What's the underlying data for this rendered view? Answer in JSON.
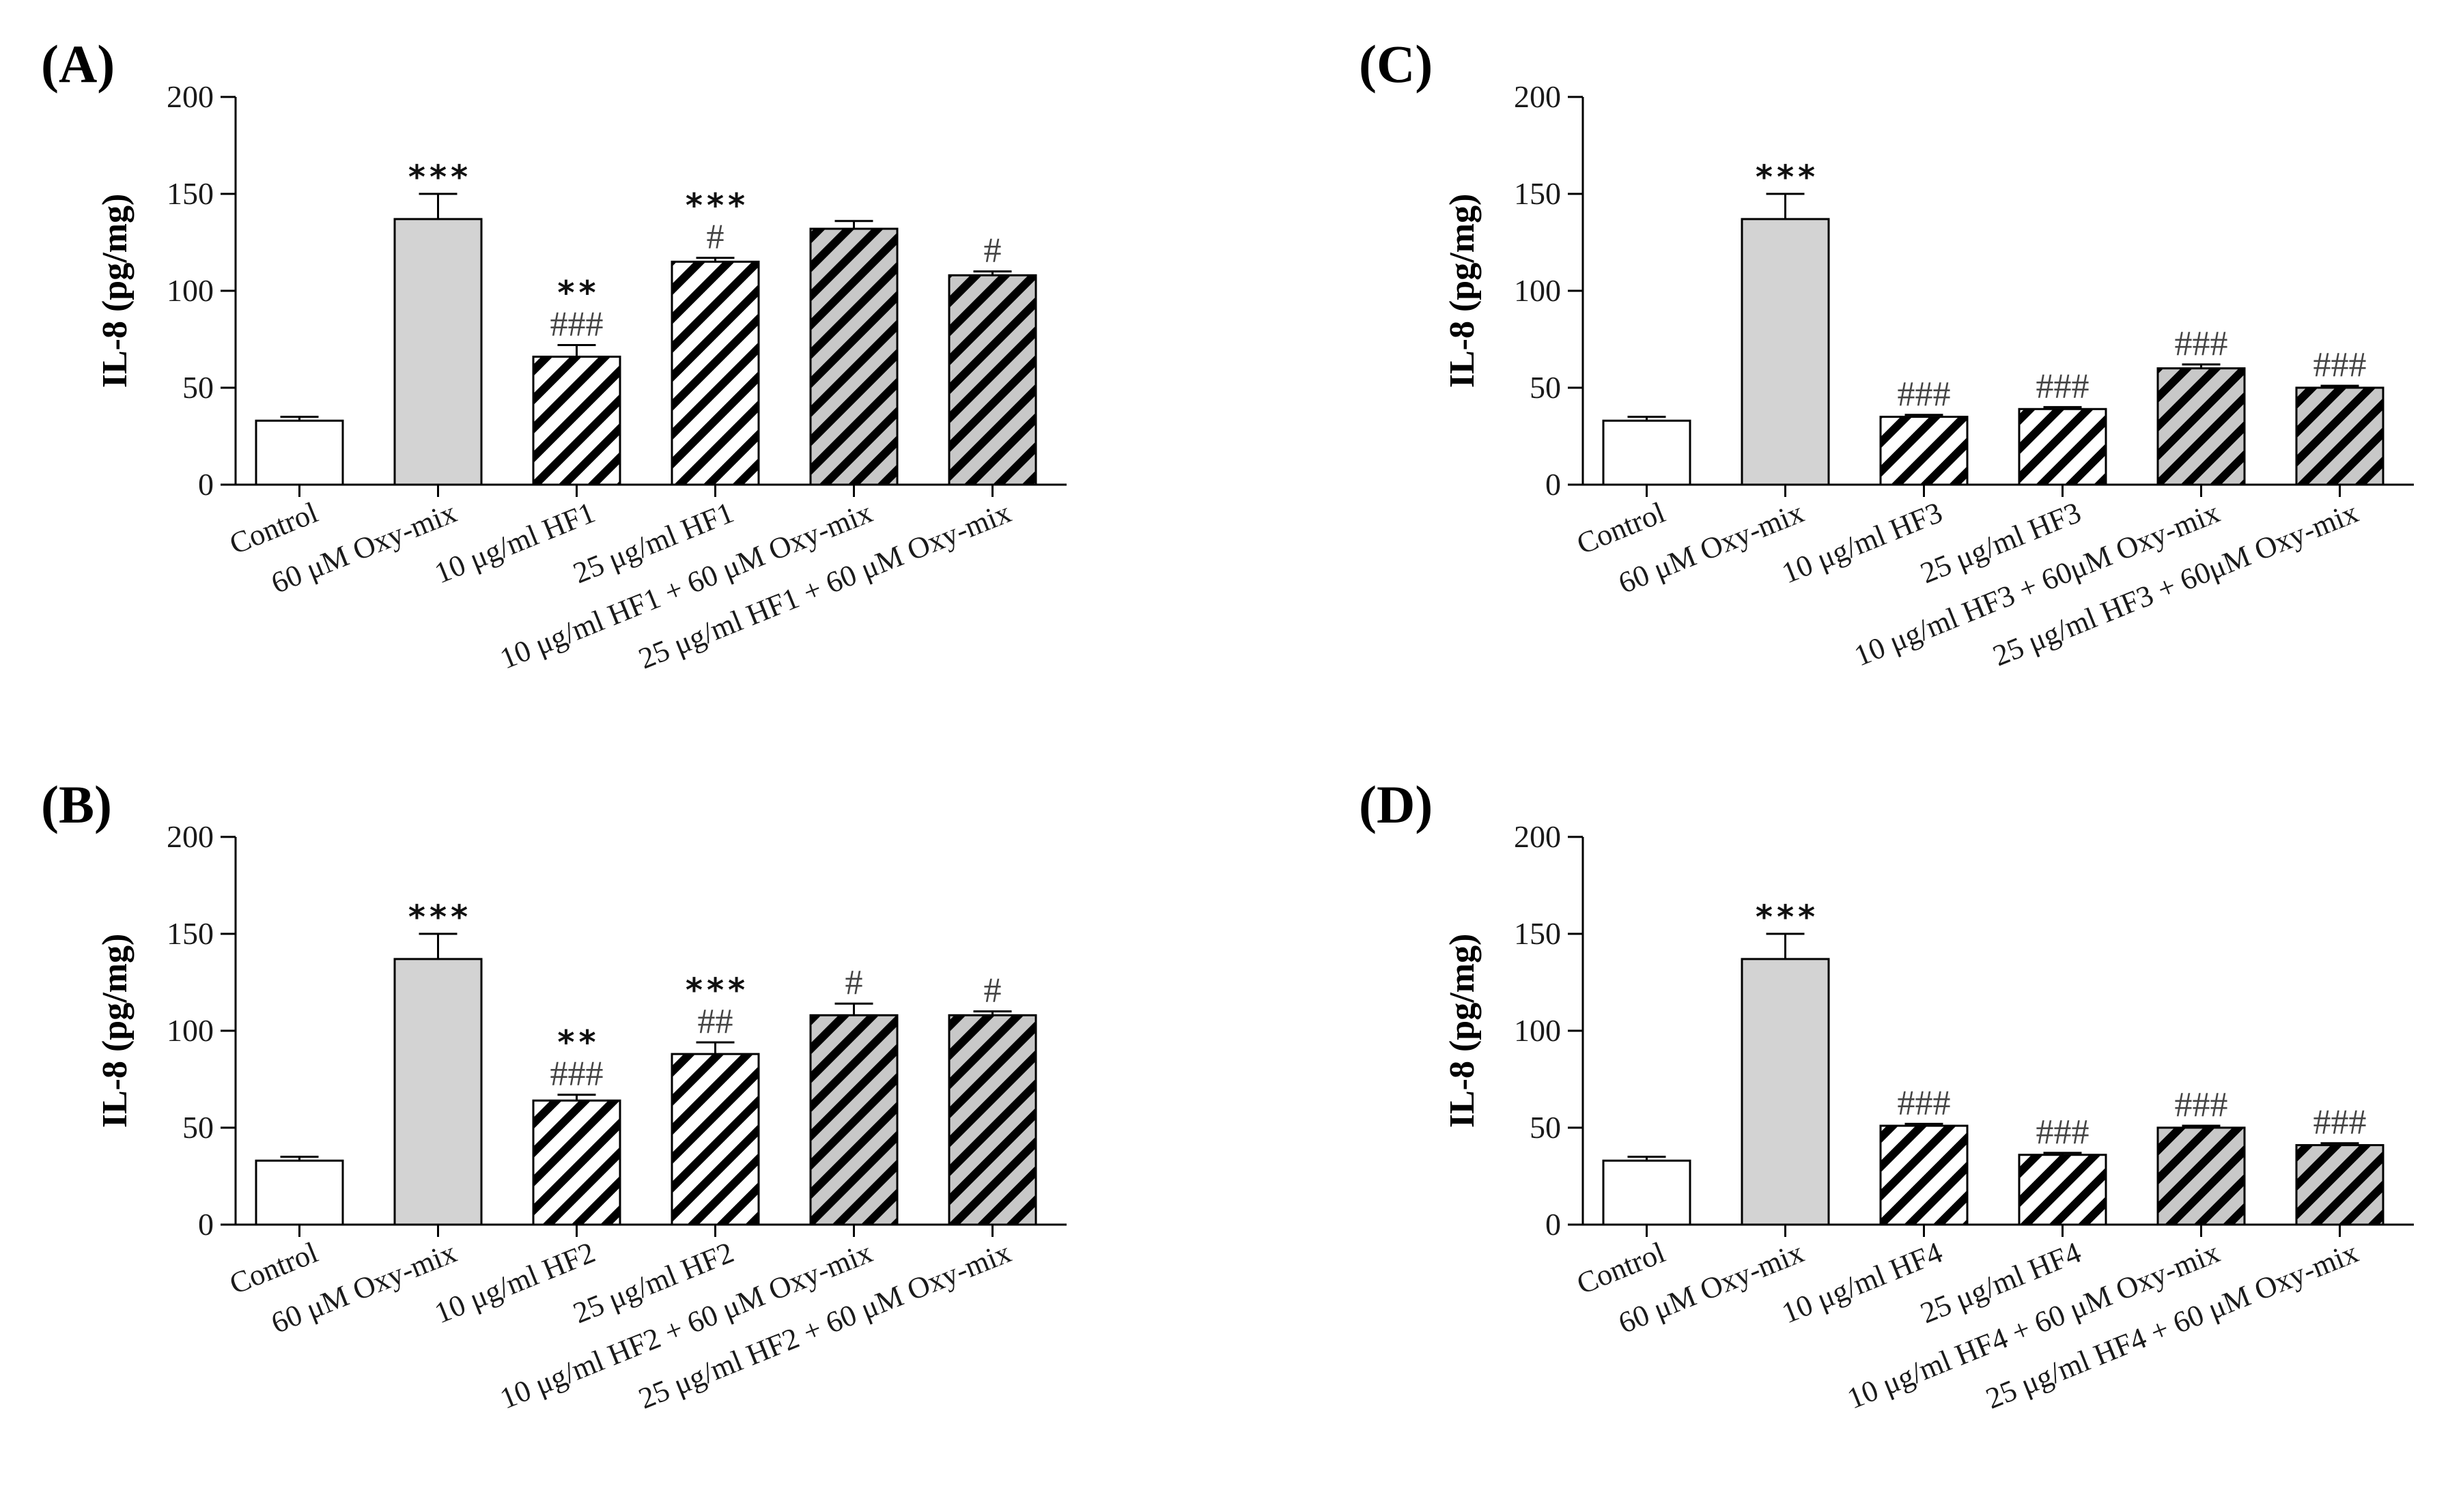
{
  "figure": {
    "description_style": "four panel bar charts"
  },
  "colors": {
    "control": "#ffffff",
    "oxy": "#d3d3d3",
    "stripe_light": "#ffffff",
    "stripe_gray": "#c8c8c8",
    "stroke": "#000000"
  },
  "chart_data": [
    {
      "panel": "(A)",
      "type": "bar",
      "ylabel": "IL-8 (pg/mg)",
      "ylim": [
        0,
        200
      ],
      "yticks": [
        "0",
        "50",
        "100",
        "150",
        "200"
      ],
      "categories": [
        "Control",
        "60 μM Oxy-mix",
        "10 μg/ml HF1",
        "25 μg/ml HF1",
        "10 μg/ml HF1 + 60 μM Oxy-mix",
        "25 μg/ml HF1 + 60 μM Oxy-mix"
      ],
      "values": [
        33,
        137,
        66,
        115,
        132,
        108
      ],
      "errors": [
        2,
        13,
        6,
        2,
        4,
        2
      ],
      "fills": [
        "control",
        "oxy",
        "stripe_light",
        "stripe_light",
        "stripe_gray",
        "stripe_gray"
      ],
      "stars": [
        "",
        "***",
        "**",
        "***",
        "",
        ""
      ],
      "hashes": [
        "",
        "",
        "###",
        "#",
        "",
        "#"
      ]
    },
    {
      "panel": "(B)",
      "type": "bar",
      "ylabel": "IL-8 (pg/mg)",
      "ylim": [
        0,
        200
      ],
      "yticks": [
        "0",
        "50",
        "100",
        "150",
        "200"
      ],
      "categories": [
        "Control",
        "60 μM Oxy-mix",
        "10 μg/ml HF2",
        "25 μg/ml HF2",
        "10 μg/ml HF2 + 60 μM Oxy-mix",
        "25 μg/ml HF2 + 60 μM Oxy-mix"
      ],
      "values": [
        33,
        137,
        64,
        88,
        108,
        108
      ],
      "errors": [
        2,
        13,
        3,
        6,
        6,
        2
      ],
      "fills": [
        "control",
        "oxy",
        "stripe_light",
        "stripe_light",
        "stripe_gray",
        "stripe_gray"
      ],
      "stars": [
        "",
        "***",
        "**",
        "***",
        "",
        ""
      ],
      "hashes": [
        "",
        "",
        "###",
        "##",
        "#",
        "#"
      ]
    },
    {
      "panel": "(C)",
      "type": "bar",
      "ylabel": "IL-8 (pg/mg)",
      "ylim": [
        0,
        200
      ],
      "yticks": [
        "0",
        "50",
        "100",
        "150",
        "200"
      ],
      "categories": [
        "Control",
        "60 μM Oxy-mix",
        "10 μg/ml HF3",
        "25 μg/ml HF3",
        "10 μg/ml HF3  + 60μM Oxy-mix",
        "25 μg/ml HF3 + 60μM Oxy-mix"
      ],
      "values": [
        33,
        137,
        35,
        39,
        60,
        50
      ],
      "errors": [
        2,
        13,
        1,
        1,
        2,
        1
      ],
      "fills": [
        "control",
        "oxy",
        "stripe_light",
        "stripe_light",
        "stripe_gray",
        "stripe_gray"
      ],
      "stars": [
        "",
        "***",
        "",
        "",
        "",
        ""
      ],
      "hashes": [
        "",
        "",
        "###",
        "###",
        "###",
        "###"
      ]
    },
    {
      "panel": "(D)",
      "type": "bar",
      "ylabel": "IL-8 (pg/mg)",
      "ylim": [
        0,
        200
      ],
      "yticks": [
        "0",
        "50",
        "100",
        "150",
        "200"
      ],
      "categories": [
        "Control",
        "60 μM Oxy-mix",
        "10 μg/ml HF4",
        "25 μg/ml HF4",
        "10 μg/ml HF4 + 60 μM Oxy-mix",
        "25 μg/ml HF4 + 60 μM Oxy-mix"
      ],
      "values": [
        33,
        137,
        51,
        36,
        50,
        41
      ],
      "errors": [
        2,
        13,
        1,
        1,
        1,
        1
      ],
      "fills": [
        "control",
        "oxy",
        "stripe_light",
        "stripe_light",
        "stripe_gray",
        "stripe_gray"
      ],
      "stars": [
        "",
        "***",
        "",
        "",
        "",
        ""
      ],
      "hashes": [
        "",
        "",
        "###",
        "###",
        "###",
        "###"
      ]
    }
  ]
}
